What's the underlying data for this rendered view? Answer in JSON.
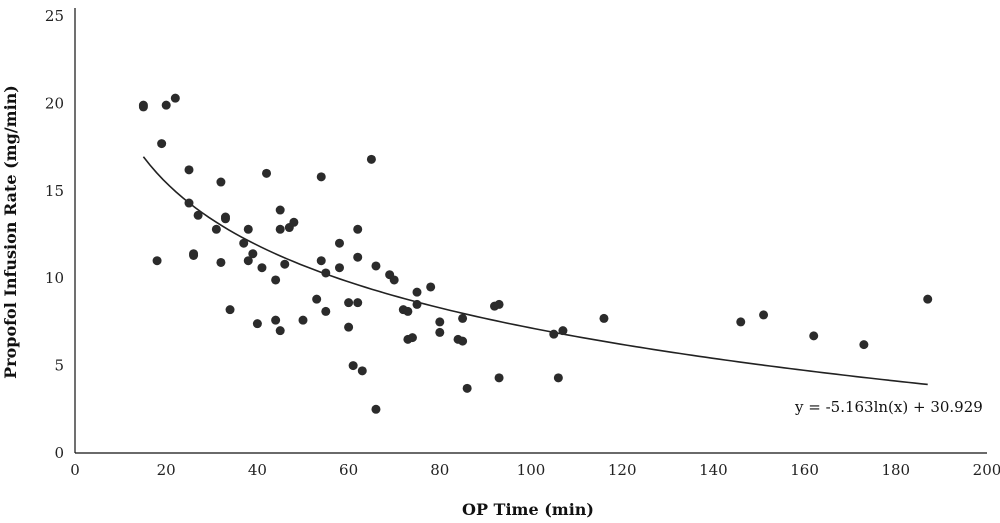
{
  "chart_data": {
    "type": "scatter",
    "xlabel": "OP Time (min)",
    "ylabel": "Propofol Infusion Rate (mg/min)",
    "xlim": [
      0,
      200
    ],
    "ylim": [
      0,
      25
    ],
    "x_ticks": [
      "0",
      "20",
      "40",
      "60",
      "80",
      "100",
      "120",
      "140",
      "160",
      "180",
      "200"
    ],
    "y_ticks": [
      "0",
      "5",
      "10",
      "15",
      "20",
      "25"
    ],
    "grid": false,
    "trendline": {
      "type": "logarithmic",
      "a": -5.163,
      "b": 30.929,
      "x_range": [
        15,
        187
      ],
      "equation_label": "y = -5.163ln(x) + 30.929"
    },
    "points": [
      [
        15,
        19.8
      ],
      [
        15,
        19.9
      ],
      [
        18,
        11.0
      ],
      [
        19,
        17.7
      ],
      [
        20,
        19.9
      ],
      [
        22,
        20.3
      ],
      [
        25,
        16.2
      ],
      [
        25,
        14.3
      ],
      [
        26,
        11.3
      ],
      [
        26,
        11.4
      ],
      [
        27,
        13.6
      ],
      [
        31,
        12.8
      ],
      [
        32,
        15.5
      ],
      [
        32,
        10.9
      ],
      [
        33,
        13.4
      ],
      [
        33,
        13.5
      ],
      [
        34,
        8.2
      ],
      [
        37,
        12.0
      ],
      [
        38,
        12.8
      ],
      [
        38,
        11.0
      ],
      [
        39,
        11.4
      ],
      [
        40,
        7.4
      ],
      [
        41,
        10.6
      ],
      [
        42,
        16.0
      ],
      [
        44,
        9.9
      ],
      [
        44,
        7.6
      ],
      [
        45,
        13.9
      ],
      [
        45,
        12.8
      ],
      [
        45,
        7.0
      ],
      [
        46,
        10.8
      ],
      [
        47,
        12.9
      ],
      [
        48,
        13.2
      ],
      [
        50,
        7.6
      ],
      [
        53,
        8.8
      ],
      [
        54,
        15.8
      ],
      [
        54,
        11.0
      ],
      [
        55,
        10.3
      ],
      [
        55,
        8.1
      ],
      [
        58,
        12.0
      ],
      [
        58,
        10.6
      ],
      [
        60,
        8.6
      ],
      [
        60,
        7.2
      ],
      [
        61,
        5.0
      ],
      [
        62,
        12.8
      ],
      [
        62,
        11.2
      ],
      [
        62,
        8.6
      ],
      [
        63,
        4.7
      ],
      [
        65,
        16.8
      ],
      [
        66,
        10.7
      ],
      [
        66,
        2.5
      ],
      [
        69,
        10.2
      ],
      [
        70,
        9.9
      ],
      [
        72,
        8.2
      ],
      [
        73,
        8.1
      ],
      [
        73,
        6.5
      ],
      [
        74,
        6.6
      ],
      [
        75,
        9.2
      ],
      [
        75,
        8.5
      ],
      [
        78,
        9.5
      ],
      [
        80,
        7.5
      ],
      [
        80,
        6.9
      ],
      [
        84,
        6.5
      ],
      [
        85,
        7.7
      ],
      [
        85,
        6.4
      ],
      [
        86,
        3.7
      ],
      [
        92,
        8.4
      ],
      [
        93,
        8.5
      ],
      [
        93,
        4.3
      ],
      [
        105,
        6.8
      ],
      [
        106,
        4.3
      ],
      [
        107,
        7.0
      ],
      [
        116,
        7.7
      ],
      [
        146,
        7.5
      ],
      [
        151,
        7.9
      ],
      [
        162,
        6.7
      ],
      [
        173,
        6.2
      ],
      [
        187,
        8.8
      ]
    ]
  }
}
